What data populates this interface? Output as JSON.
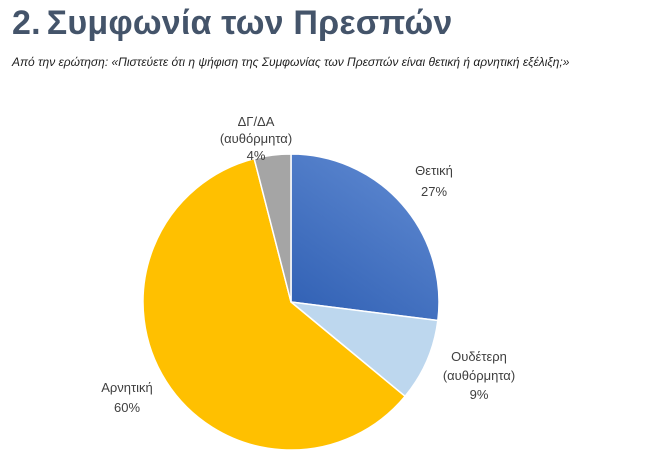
{
  "heading": {
    "number": "2.",
    "text": "Συμφωνία των Πρεσπών"
  },
  "subtitle": "Από την ερώτηση: «Πιστεύετε ότι η ψήφιση της Συμφωνίας των Πρεσπών είναι θετική ή αρνητική εξέλιξη;»",
  "chart_data": {
    "type": "pie",
    "title": "",
    "start_angle_deg": 0,
    "direction": "clockwise",
    "series": [
      {
        "key": "positive",
        "label_lines": [
          "Θετική"
        ],
        "value_label": "27%",
        "value": 27,
        "color": "#4472c4"
      },
      {
        "key": "neutral",
        "label_lines": [
          "Ουδέτερη",
          "(αυθόρμητα)"
        ],
        "value_label": "9%",
        "value": 9,
        "color": "#bdd7ee"
      },
      {
        "key": "negative",
        "label_lines": [
          "Αρνητική"
        ],
        "value_label": "60%",
        "value": 60,
        "color": "#ffc000"
      },
      {
        "key": "dkna",
        "label_lines": [
          "ΔΓ/ΔΑ",
          "(αυθόρμητα)"
        ],
        "value_label": "4%",
        "value": 4,
        "color": "#a5a5a5"
      }
    ]
  }
}
